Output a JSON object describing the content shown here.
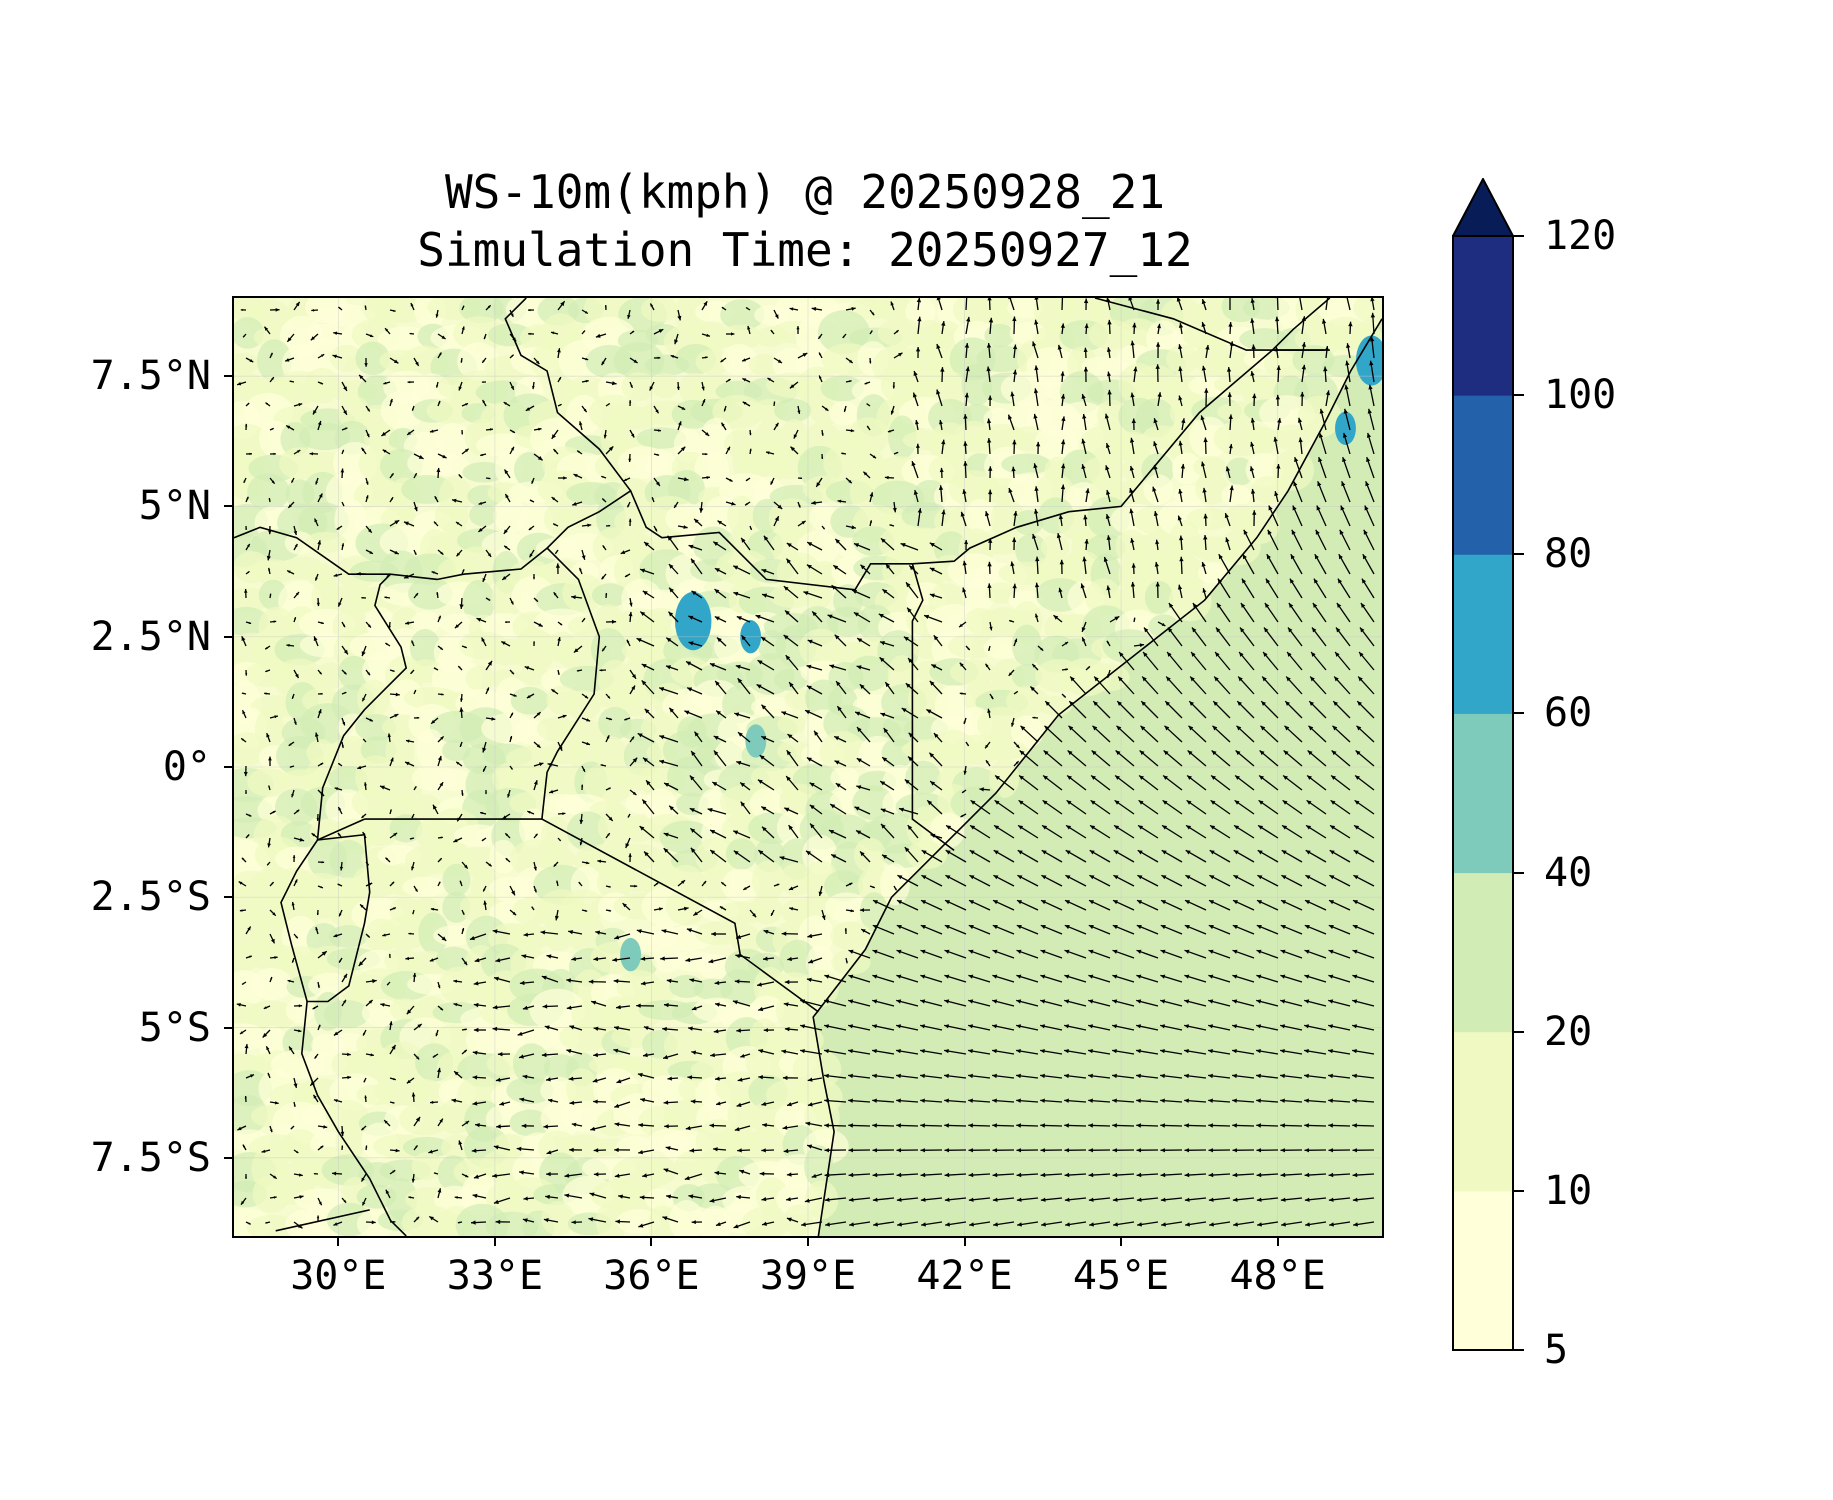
{
  "title": {
    "line1": "WS-10m(kmph) @ 20250928_21",
    "line2": "Simulation Time: 20250927_12"
  },
  "map": {
    "projection": "PlateCarree",
    "lon_range": [
      28,
      50
    ],
    "lat_range": [
      -9,
      9
    ],
    "background_color": "#f6fbd0",
    "ocean_color": "#d3ebb5",
    "border_color": "#000000",
    "vector_color": "#000000",
    "gridlines": true,
    "x_ticks": [
      {
        "value": 30,
        "label": "30°E"
      },
      {
        "value": 33,
        "label": "33°E"
      },
      {
        "value": 36,
        "label": "36°E"
      },
      {
        "value": 39,
        "label": "39°E"
      },
      {
        "value": 42,
        "label": "42°E"
      },
      {
        "value": 45,
        "label": "45°E"
      },
      {
        "value": 48,
        "label": "48°E"
      }
    ],
    "y_ticks": [
      {
        "value": 7.5,
        "label": "7.5°N"
      },
      {
        "value": 5,
        "label": "5°N"
      },
      {
        "value": 2.5,
        "label": "2.5°N"
      },
      {
        "value": 0,
        "label": "0°"
      },
      {
        "value": -2.5,
        "label": "2.5°S"
      },
      {
        "value": -5,
        "label": "5°S"
      },
      {
        "value": -7.5,
        "label": "7.5°S"
      }
    ],
    "wind_speed_hotspots": [
      {
        "lon": 36.8,
        "lat": 2.8,
        "speed": 65,
        "r": 0.35
      },
      {
        "lon": 37.9,
        "lat": 2.5,
        "speed": 62,
        "r": 0.2
      },
      {
        "lon": 38.0,
        "lat": 0.5,
        "speed": 58,
        "r": 0.2
      },
      {
        "lon": 35.6,
        "lat": -3.6,
        "speed": 58,
        "r": 0.2
      },
      {
        "lon": 49.8,
        "lat": 7.8,
        "speed": 62,
        "r": 0.3
      },
      {
        "lon": 49.3,
        "lat": 6.5,
        "speed": 60,
        "r": 0.2
      }
    ]
  },
  "colorbar": {
    "levels": [
      5,
      10,
      20,
      40,
      60,
      80,
      100,
      120
    ],
    "colors": [
      "#ffffd9",
      "#f0f9c2",
      "#d1ecb5",
      "#7ecabb",
      "#32a6c8",
      "#2362ab",
      "#1e2d7f"
    ],
    "extend_color": "#081d58",
    "extend": "max",
    "tick_labels": [
      "5",
      "10",
      "20",
      "40",
      "60",
      "80",
      "100",
      "120"
    ]
  }
}
